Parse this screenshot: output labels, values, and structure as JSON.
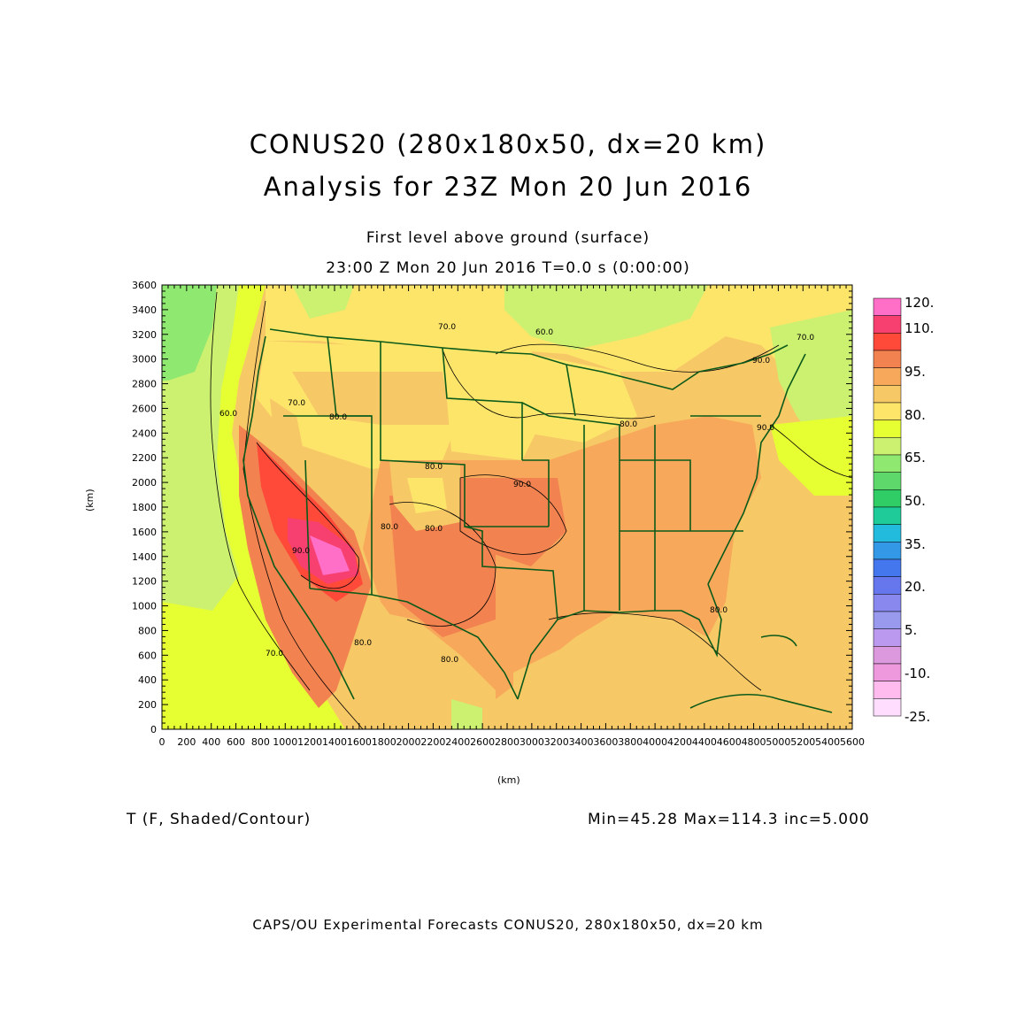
{
  "header": {
    "title_line1": "CONUS20 (280x180x50, dx=20 km)",
    "title_line2": "Analysis for 23Z Mon 20 Jun 2016",
    "subtitle_line1": "First level above ground (surface)",
    "subtitle_line2": "23:00 Z Mon 20 Jun 2016    T=0.0 s (0:00:00)"
  },
  "axes": {
    "x_label": "(km)",
    "y_label": "(km)",
    "x_ticks": [
      "0",
      "200",
      "400",
      "600",
      "800",
      "1000",
      "1200",
      "1400",
      "1600",
      "1800",
      "2000",
      "2200",
      "2400",
      "2600",
      "2800",
      "3000",
      "3200",
      "3400",
      "3600",
      "3800",
      "4000",
      "4200",
      "4400",
      "4600",
      "4800",
      "5000",
      "5200",
      "5400",
      "5600"
    ],
    "y_ticks": [
      "0",
      "200",
      "400",
      "600",
      "800",
      "1000",
      "1200",
      "1400",
      "1600",
      "1800",
      "2000",
      "2200",
      "2400",
      "2600",
      "2800",
      "3000",
      "3200",
      "3400",
      "3600"
    ],
    "x_range_km": [
      0,
      5600
    ],
    "y_range_km": [
      0,
      3600
    ]
  },
  "colorbar": {
    "labels": [
      "120.",
      "110.",
      "95.",
      "80.",
      "65.",
      "50.",
      "35.",
      "20.",
      "5.",
      "-10.",
      "-25."
    ],
    "colors": [
      "#ff6ec7",
      "#f7406f",
      "#ff4a3a",
      "#f2824f",
      "#f7a85a",
      "#f6c866",
      "#fde56a",
      "#e6ff33",
      "#ccf070",
      "#8fe870",
      "#5ed86a",
      "#30cc66",
      "#1fcc99",
      "#22bbdd",
      "#3399e6",
      "#4477ee",
      "#6677ee",
      "#8888ee",
      "#9999ee",
      "#bb99ee",
      "#dd99dd",
      "#ee99dd",
      "#ffbbee",
      "#ffddff"
    ]
  },
  "contour_labels": [
    "90.0",
    "80.0",
    "70.0",
    "60.0",
    "80.0",
    "70.0",
    "90.0",
    "80.0",
    "90.0",
    "80.0",
    "80.0",
    "70.0",
    "80.0",
    "80.0",
    "60.0",
    "70.0",
    "90.0",
    "80.0"
  ],
  "footer": {
    "variable": "T (F, Shaded/Contour)",
    "stats": "Min=45.28 Max=114.3 inc=5.000",
    "credit": "CAPS/OU Experimental Forecasts   CONUS20, 280x180x50, dx=20 km"
  }
}
